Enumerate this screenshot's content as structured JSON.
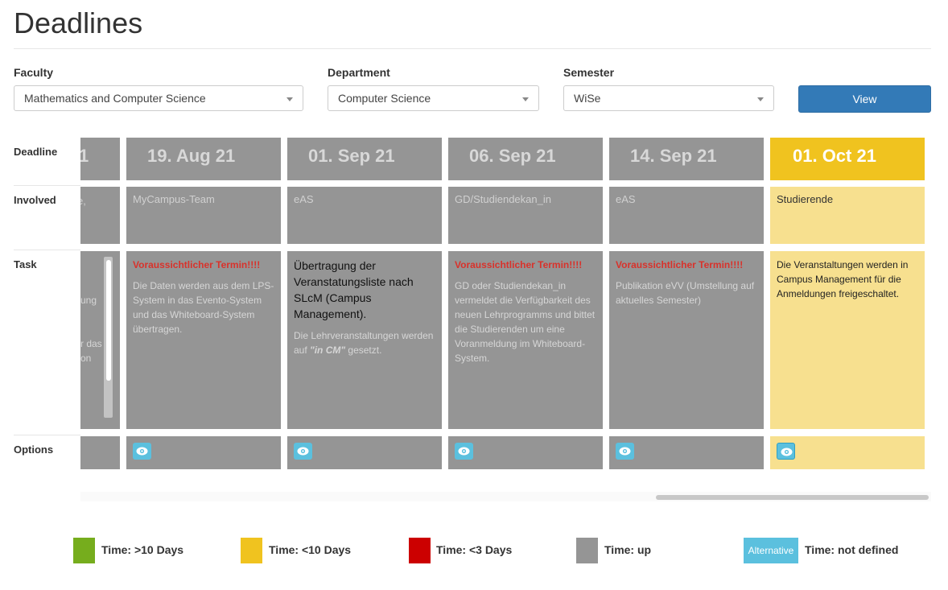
{
  "page": {
    "title": "Deadlines"
  },
  "filters": {
    "faculty": {
      "label": "Faculty",
      "value": "Mathematics and Computer Science"
    },
    "department": {
      "label": "Department",
      "value": "Computer Science"
    },
    "semester": {
      "label": "Semester",
      "value": "WiSe"
    },
    "view_label": "View"
  },
  "row_labels": {
    "deadline": "Deadline",
    "involved": "Involved",
    "task": "Task",
    "options": "Options"
  },
  "partial_column": {
    "date": "1",
    "involved": "e,",
    "task_fragments": [
      "ung",
      "r das",
      "on"
    ]
  },
  "columns": [
    {
      "date": "19. Aug 21",
      "involved": "MyCampus-Team",
      "warning": "Voraussichtlicher Termin!!!!",
      "description": "Die Daten werden aus dem LPS-System in das Evento-System und das Whiteboard-System übertragen."
    },
    {
      "date": "01. Sep 21",
      "involved": "eAS",
      "main_text": "Übertragung der Veranstatungsliste nach SLcM (Campus Management).",
      "description_prefix": "Die Lehrveranstaltungen werden auf ",
      "description_emphasis": "\"in CM\"",
      "description_suffix": " gesetzt."
    },
    {
      "date": "06. Sep 21",
      "involved": "GD/Studiendekan_in",
      "warning": "Voraussichtlicher Termin!!!!",
      "description": "GD oder Studiendekan_in vermeldet die Verfügbarkeit des neuen Lehrprogramms und bittet die Studierenden um eine Voranmeldung im Whiteboard-System."
    },
    {
      "date": "14. Sep 21",
      "involved": "eAS",
      "warning": "Voraussichtlicher Termin!!!!",
      "description": "Publikation eVV (Umstellung auf aktuelles Semester)"
    },
    {
      "date": "01. Oct 21",
      "involved": "Studierende",
      "description": "Die Veranstaltungen werden in Campus Management für die Anmeldungen freigeschaltet."
    }
  ],
  "legend": [
    {
      "label": "Time: >10 Days",
      "color": "#76ad1d"
    },
    {
      "label": "Time: <10 Days",
      "color": "#f0c31f"
    },
    {
      "label": "Time: <3 Days",
      "color": "#cc0000"
    },
    {
      "label": "Time: up",
      "color": "#959595"
    },
    {
      "badge": "Alternative",
      "label": "Time: not defined",
      "color": "#5bc0de"
    }
  ],
  "icons": {
    "options": "eye-icon",
    "select": "chevron-down-icon"
  }
}
